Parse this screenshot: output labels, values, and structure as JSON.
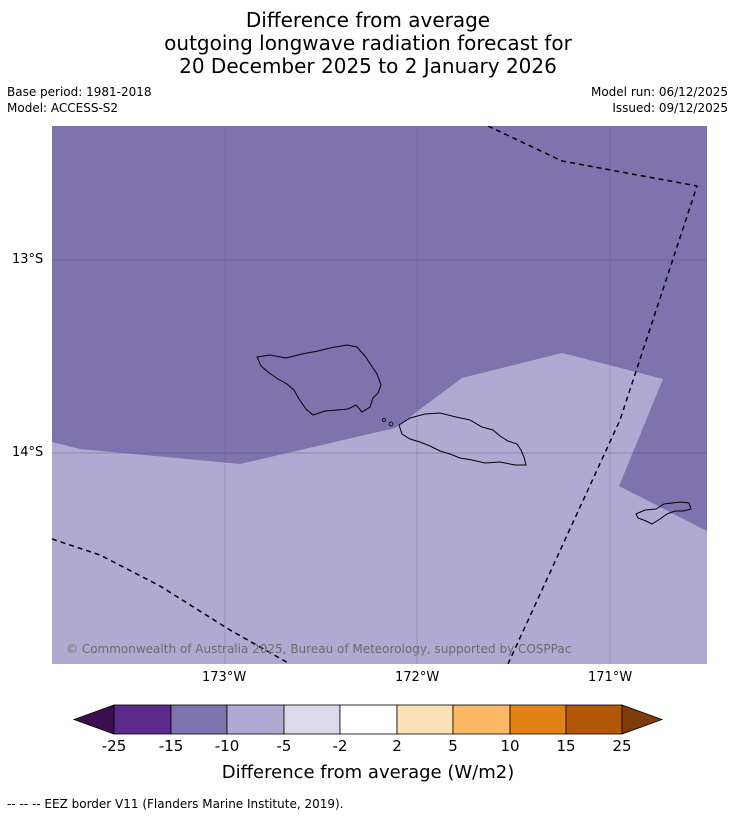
{
  "title": {
    "line1": "Difference from average",
    "line2": "outgoing longwave radiation forecast for",
    "line3": "20 December 2025 to 2 January 2026"
  },
  "meta": {
    "base_period": "Base period: 1981-2018",
    "model": "Model: ACCESS-S2",
    "model_run": "Model run: 06/12/2025",
    "issued": "Issued: 09/12/2025"
  },
  "map": {
    "lat_labels": [
      "13°S",
      "14°S"
    ],
    "lon_labels": [
      "173°W",
      "172°W",
      "171°W"
    ],
    "copyright": "© Commonwealth of Australia 2025, Bureau of Meteorology, supported by COSPPac",
    "colors": {
      "strong_negative": "#7f73ad",
      "weak_negative": "#b0aad2"
    }
  },
  "colorbar": {
    "ticks": [
      "-25",
      "-15",
      "-10",
      "-5",
      "-2",
      "2",
      "5",
      "10",
      "15",
      "25"
    ],
    "colors": [
      "#3b0f4e",
      "#5b2a8c",
      "#7f73ad",
      "#b0aad2",
      "#dadaeb",
      "#ffffff",
      "#fee0b6",
      "#fdb863",
      "#e08214",
      "#b35806",
      "#7f3b08"
    ],
    "label": "Difference from average (W/m2)"
  },
  "footnote": "--  --  -- EEZ border V11 (Flanders Marine Institute, 2019)."
}
